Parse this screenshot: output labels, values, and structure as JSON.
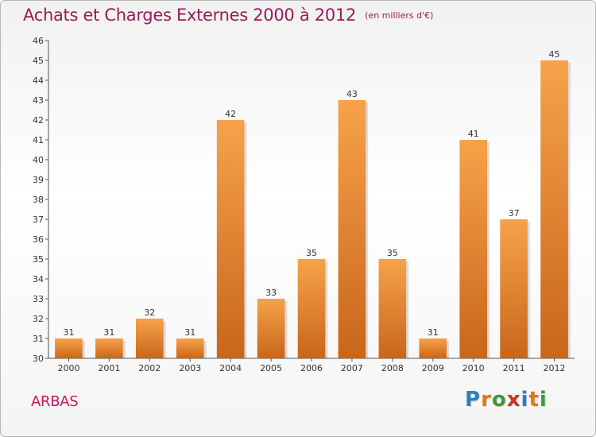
{
  "header": {
    "title": "Achats et Charges Externes 2000 à 2012",
    "subtitle": "(en milliers d'€)"
  },
  "footer": {
    "commune": "ARBAS",
    "logo_text": "Proxiti",
    "logo_letters": [
      "P",
      "r",
      "o",
      "x",
      "i",
      "t",
      "i"
    ],
    "logo_colors": [
      "#2a7fc0",
      "#e0751b",
      "#3c9a3a",
      "#d23127",
      "#2a7fc0",
      "#e0751b",
      "#3c9a3a"
    ]
  },
  "chart_data": {
    "type": "bar",
    "title": "Achats et Charges Externes 2000 à 2012",
    "subtitle": "(en milliers d'€)",
    "categories": [
      "2000",
      "2001",
      "2002",
      "2003",
      "2004",
      "2005",
      "2006",
      "2007",
      "2008",
      "2009",
      "2010",
      "2011",
      "2012"
    ],
    "values": [
      31,
      31,
      32,
      31,
      42,
      33,
      35,
      43,
      35,
      31,
      41,
      37,
      45
    ],
    "ylim": [
      30,
      46
    ],
    "yticks": [
      30,
      31,
      32,
      33,
      34,
      35,
      36,
      37,
      38,
      39,
      40,
      41,
      42,
      43,
      44,
      45,
      46
    ],
    "grid": false,
    "bar_color_light": "#f7a24a",
    "bar_color_dark": "#c8661a",
    "xlabel": "",
    "ylabel": ""
  }
}
